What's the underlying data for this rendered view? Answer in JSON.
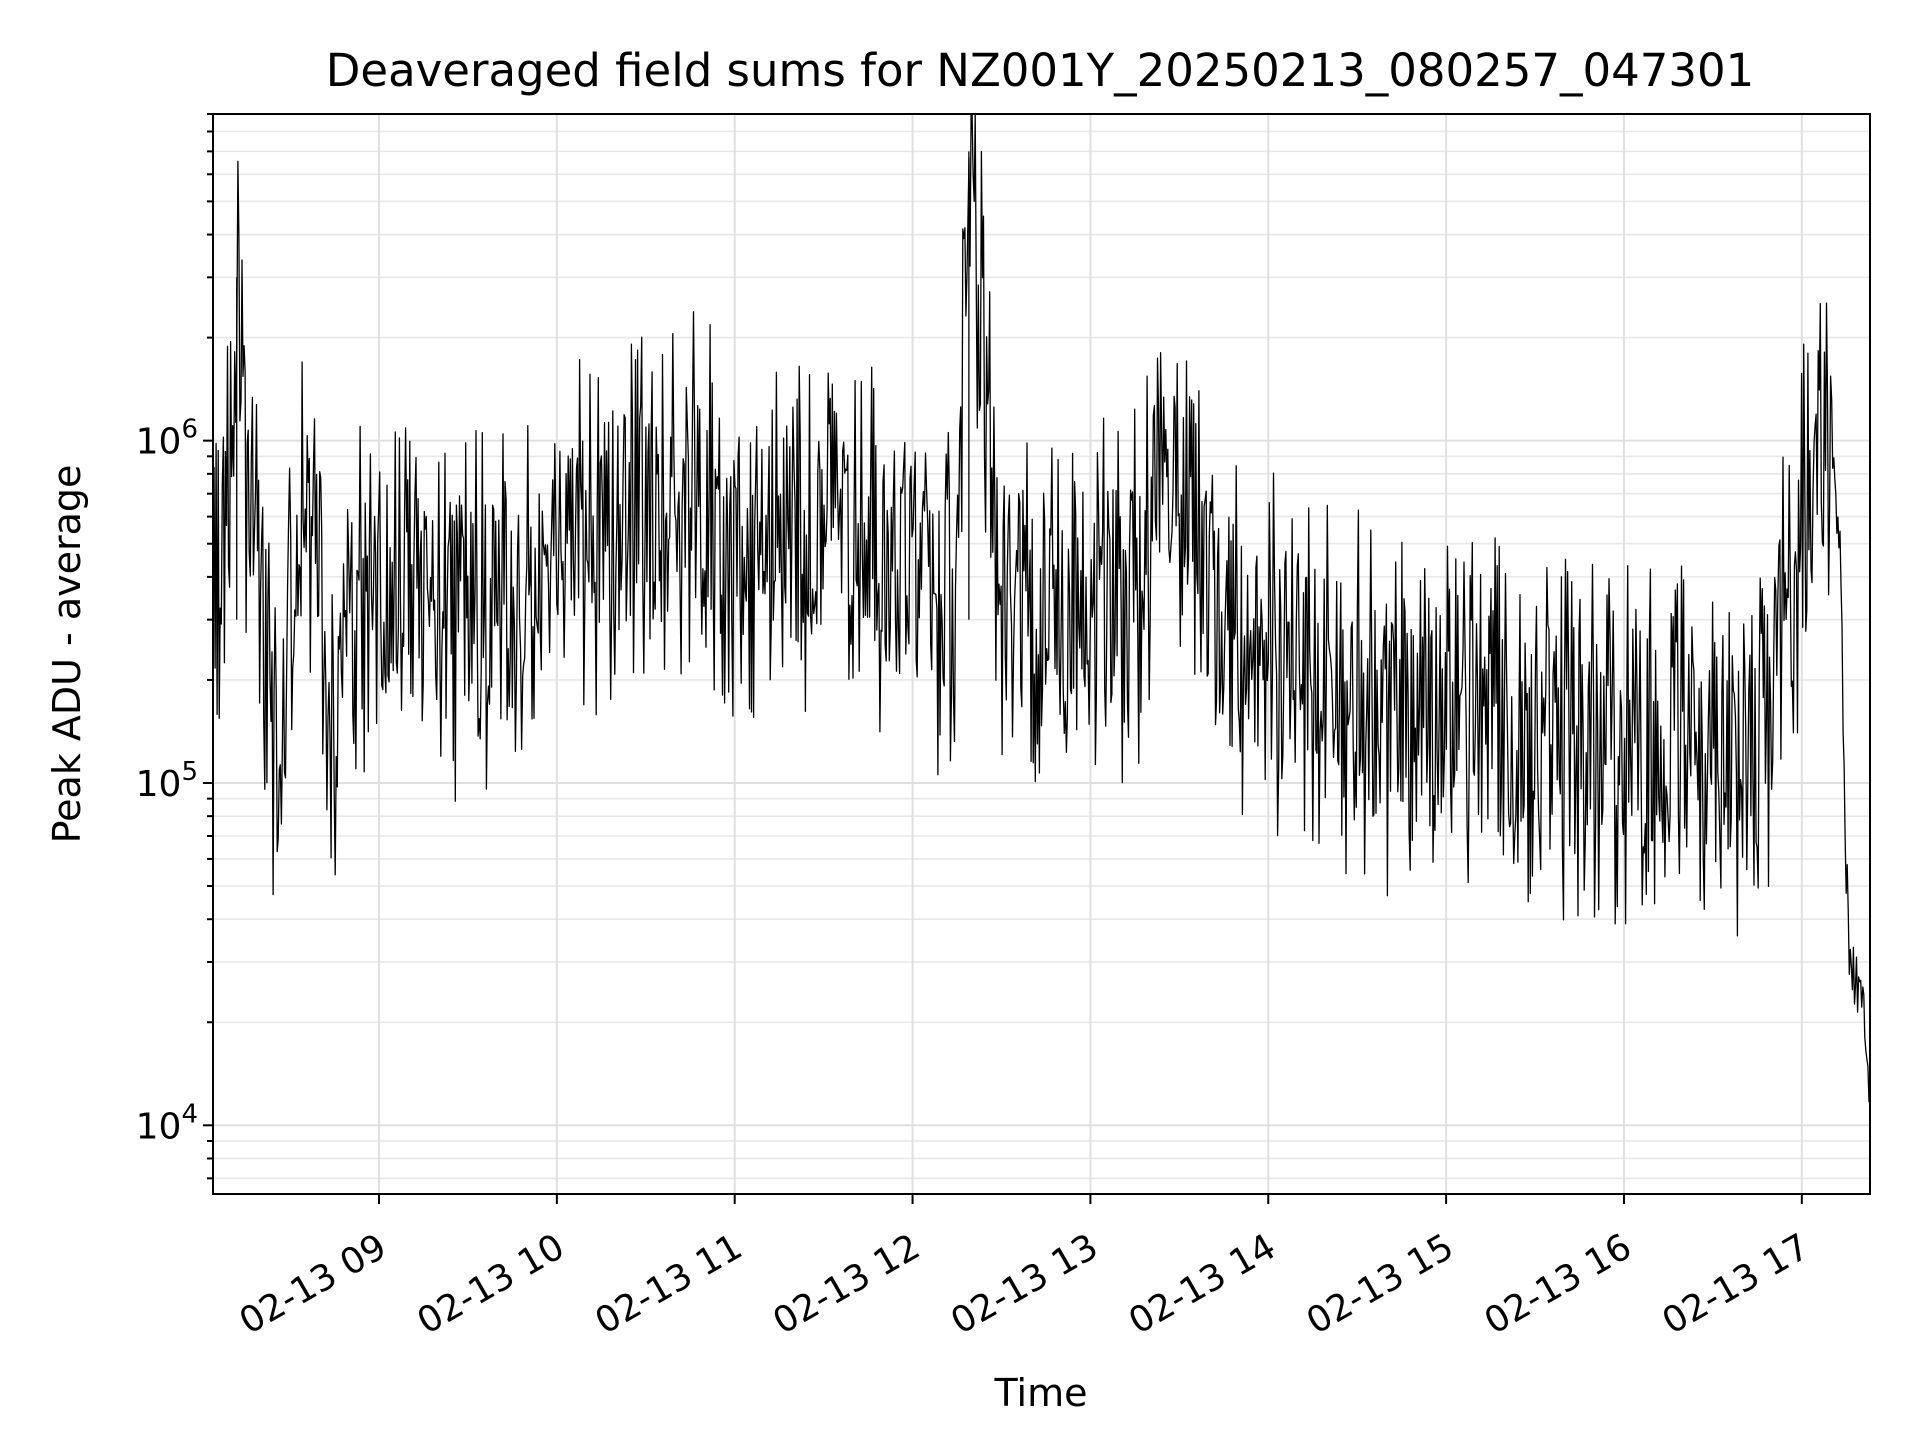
{
  "chart_data": {
    "type": "line",
    "title": "Deaveraged field sums for NZ001Y_20250213_080257_047301",
    "xlabel": "Time",
    "ylabel": "Peak ADU - average",
    "y_scale": "log",
    "grid": true,
    "x_range": [
      "2025-02-13 08:04",
      "2025-02-13 17:23"
    ],
    "ylim": [
      6300,
      9000000
    ],
    "x_ticks": [
      "02-13 09",
      "02-13 10",
      "02-13 11",
      "02-13 12",
      "02-13 13",
      "02-13 14",
      "02-13 15",
      "02-13 16",
      "02-13 17"
    ],
    "y_ticks": [
      {
        "base": "10",
        "exp": "4",
        "value": 10000
      },
      {
        "base": "10",
        "exp": "5",
        "value": 100000
      },
      {
        "base": "10",
        "exp": "6",
        "value": 1000000
      }
    ],
    "line_color": "#000000",
    "series": [
      {
        "x": [
          "2025-02-13 08:04",
          "2025-02-13 08:08",
          "2025-02-13 08:12",
          "2025-02-13 08:14",
          "2025-02-13 08:16",
          "2025-02-13 08:20",
          "2025-02-13 08:25",
          "2025-02-13 08:30",
          "2025-02-13 08:35",
          "2025-02-13 08:40",
          "2025-02-13 08:45",
          "2025-02-13 08:50",
          "2025-02-13 08:55",
          "2025-02-13 09:00",
          "2025-02-13 09:15",
          "2025-02-13 09:30",
          "2025-02-13 09:45",
          "2025-02-13 10:00",
          "2025-02-13 10:15",
          "2025-02-13 10:30",
          "2025-02-13 10:45",
          "2025-02-13 11:00",
          "2025-02-13 11:15",
          "2025-02-13 11:30",
          "2025-02-13 11:45",
          "2025-02-13 12:00",
          "2025-02-13 12:15",
          "2025-02-13 12:19",
          "2025-02-13 12:30",
          "2025-02-13 12:45",
          "2025-02-13 13:00",
          "2025-02-13 13:15",
          "2025-02-13 13:25",
          "2025-02-13 13:35",
          "2025-02-13 13:45",
          "2025-02-13 14:00",
          "2025-02-13 14:14",
          "2025-02-13 14:30",
          "2025-02-13 14:45",
          "2025-02-13 15:00",
          "2025-02-13 15:15",
          "2025-02-13 15:30",
          "2025-02-13 15:45",
          "2025-02-13 16:00",
          "2025-02-13 16:15",
          "2025-02-13 16:30",
          "2025-02-13 16:45",
          "2025-02-13 16:55",
          "2025-02-13 17:05",
          "2025-02-13 17:10",
          "2025-02-13 17:13",
          "2025-02-13 17:15",
          "2025-02-13 17:17",
          "2025-02-13 17:20",
          "2025-02-13 17:23"
        ],
        "values": [
          500000,
          450000,
          3000000,
          1300000,
          600000,
          350000,
          120000,
          300000,
          600000,
          500000,
          150000,
          300000,
          350000,
          400000,
          350000,
          300000,
          350000,
          450000,
          550000,
          600000,
          700000,
          550000,
          500000,
          550000,
          500000,
          400000,
          350000,
          7000000,
          350000,
          300000,
          350000,
          350000,
          1000000,
          600000,
          300000,
          250000,
          200000,
          180000,
          150000,
          160000,
          150000,
          140000,
          130000,
          130000,
          140000,
          120000,
          110000,
          350000,
          800000,
          1200000,
          500000,
          50000,
          25000,
          30000,
          10000
        ]
      }
    ]
  }
}
